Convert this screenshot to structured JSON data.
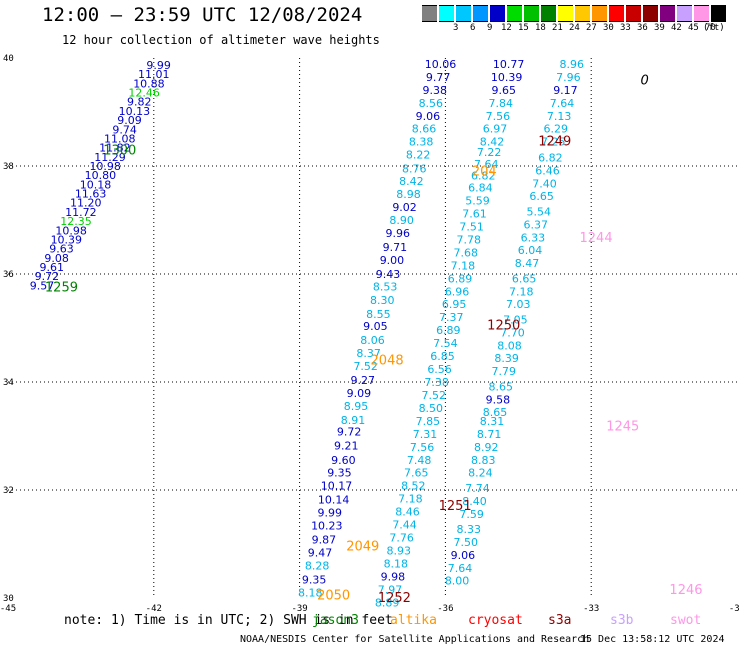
{
  "title": "12:00 – 23:59 UTC 12/08/2024",
  "subtitle": "12 hour collection of altimeter wave heights",
  "color_scale": {
    "unit": "(ft)",
    "bins": [
      {
        "label": "",
        "color": "#808080"
      },
      {
        "label": "3",
        "color": "#00ffff"
      },
      {
        "label": "6",
        "color": "#00c8ff"
      },
      {
        "label": "9",
        "color": "#0096ff"
      },
      {
        "label": "12",
        "color": "#0000c8"
      },
      {
        "label": "15",
        "color": "#00dc00"
      },
      {
        "label": "18",
        "color": "#00c000"
      },
      {
        "label": "21",
        "color": "#008200"
      },
      {
        "label": "24",
        "color": "#ffff00"
      },
      {
        "label": "27",
        "color": "#ffc800"
      },
      {
        "label": "30",
        "color": "#ff9600"
      },
      {
        "label": "33",
        "color": "#ff0000"
      },
      {
        "label": "36",
        "color": "#c80000"
      },
      {
        "label": "39",
        "color": "#8c0000"
      },
      {
        "label": "42",
        "color": "#800080"
      },
      {
        "label": "45",
        "color": "#c8a0ff"
      },
      {
        "label": "70",
        "color": "#ff96e6"
      },
      {
        "label": "",
        "color": "#000000"
      }
    ]
  },
  "chart_data": {
    "type": "scatter",
    "xlim": [
      -45,
      -30
    ],
    "ylim": [
      30,
      40
    ],
    "x_ticks": [
      "-45",
      "-42",
      "-39",
      "-36",
      "-33",
      "-30"
    ],
    "y_ticks": [
      "40",
      "38",
      "36",
      "34",
      "32",
      "30"
    ],
    "grid": true,
    "value_colors": {
      "blue": "#0000c8",
      "light": "#00b4e6",
      "green": "#00d000",
      "time": "#008200"
    },
    "tracks": [
      {
        "points": [
          {
            "x": -41.9,
            "y": 39.87,
            "v": "9.99"
          },
          {
            "x": -42.0,
            "y": 39.7,
            "v": "11.01"
          },
          {
            "x": -42.1,
            "y": 39.53,
            "v": "10.88"
          },
          {
            "x": -42.2,
            "y": 39.36,
            "v": "12.46"
          },
          {
            "x": -42.3,
            "y": 39.19,
            "v": "9.82"
          },
          {
            "x": -42.4,
            "y": 39.02,
            "v": "10.13"
          },
          {
            "x": -42.5,
            "y": 38.85,
            "v": "9.09"
          },
          {
            "x": -42.6,
            "y": 38.68,
            "v": "9.74"
          },
          {
            "x": -42.7,
            "y": 38.51,
            "v": "11.08"
          },
          {
            "x": -42.8,
            "y": 38.34,
            "v": "11.82"
          },
          {
            "x": -42.9,
            "y": 38.17,
            "v": "11.29"
          },
          {
            "x": -43.0,
            "y": 38.0,
            "v": "10.98"
          },
          {
            "x": -43.1,
            "y": 37.83,
            "v": "10.80"
          },
          {
            "x": -43.2,
            "y": 37.66,
            "v": "10.18"
          },
          {
            "x": -43.3,
            "y": 37.49,
            "v": "11.63"
          },
          {
            "x": -43.4,
            "y": 37.32,
            "v": "11.20"
          },
          {
            "x": -43.5,
            "y": 37.15,
            "v": "11.72"
          },
          {
            "x": -43.6,
            "y": 36.98,
            "v": "12.35"
          },
          {
            "x": -43.7,
            "y": 36.81,
            "v": "10.98"
          },
          {
            "x": -43.8,
            "y": 36.64,
            "v": "10.39"
          },
          {
            "x": -43.9,
            "y": 36.47,
            "v": "9.63"
          },
          {
            "x": -44.0,
            "y": 36.3,
            "v": "9.08"
          },
          {
            "x": -44.1,
            "y": 36.13,
            "v": "9.61"
          },
          {
            "x": -44.2,
            "y": 35.96,
            "v": "9.72"
          },
          {
            "x": -44.3,
            "y": 35.79,
            "v": "9.57"
          }
        ],
        "time_labels": [
          {
            "x": -42.7,
            "y": 38.29,
            "t": "1300"
          },
          {
            "x": -43.9,
            "y": 35.75,
            "t": "1259"
          }
        ]
      },
      {
        "points": [
          {
            "x": -36.1,
            "y": 39.89,
            "v": "10.06"
          },
          {
            "x": -36.15,
            "y": 39.65,
            "v": "9.77"
          },
          {
            "x": -36.22,
            "y": 39.41,
            "v": "9.38"
          },
          {
            "x": -36.3,
            "y": 39.17,
            "v": "8.56"
          },
          {
            "x": -36.36,
            "y": 38.93,
            "v": "9.06"
          },
          {
            "x": -36.44,
            "y": 38.69,
            "v": "8.66"
          },
          {
            "x": -36.5,
            "y": 38.45,
            "v": "8.38"
          },
          {
            "x": -36.56,
            "y": 38.21,
            "v": "8.22"
          },
          {
            "x": -36.64,
            "y": 37.95,
            "v": "8.76"
          },
          {
            "x": -36.7,
            "y": 37.72,
            "v": "8.42"
          },
          {
            "x": -36.76,
            "y": 37.48,
            "v": "8.98"
          },
          {
            "x": -36.84,
            "y": 37.24,
            "v": "9.02"
          },
          {
            "x": -36.9,
            "y": 37.0,
            "v": "8.90"
          },
          {
            "x": -36.98,
            "y": 36.76,
            "v": "9.96"
          },
          {
            "x": -37.04,
            "y": 36.5,
            "v": "9.71"
          },
          {
            "x": -37.1,
            "y": 36.26,
            "v": "9.00"
          },
          {
            "x": -37.18,
            "y": 36.0,
            "v": "9.43"
          },
          {
            "x": -37.24,
            "y": 35.77,
            "v": "8.53"
          },
          {
            "x": -37.3,
            "y": 35.52,
            "v": "8.30"
          },
          {
            "x": -37.38,
            "y": 35.26,
            "v": "8.55"
          },
          {
            "x": -37.44,
            "y": 35.04,
            "v": "9.05"
          },
          {
            "x": -37.5,
            "y": 34.78,
            "v": "8.06"
          },
          {
            "x": -37.58,
            "y": 34.54,
            "v": "8.37"
          },
          {
            "x": -37.64,
            "y": 34.3,
            "v": "7.52"
          },
          {
            "x": -37.7,
            "y": 34.04,
            "v": "9.27"
          },
          {
            "x": -37.78,
            "y": 33.8,
            "v": "9.09"
          },
          {
            "x": -37.84,
            "y": 33.56,
            "v": "8.95"
          },
          {
            "x": -37.9,
            "y": 33.3,
            "v": "8.91"
          },
          {
            "x": -37.98,
            "y": 33.08,
            "v": "9.72"
          },
          {
            "x": -38.04,
            "y": 32.82,
            "v": "9.21"
          },
          {
            "x": -38.1,
            "y": 32.56,
            "v": "9.60"
          },
          {
            "x": -38.18,
            "y": 32.32,
            "v": "9.35"
          },
          {
            "x": -38.24,
            "y": 32.08,
            "v": "10.17"
          },
          {
            "x": -38.3,
            "y": 31.82,
            "v": "10.14"
          },
          {
            "x": -38.38,
            "y": 31.58,
            "v": "9.99"
          },
          {
            "x": -38.44,
            "y": 31.34,
            "v": "10.23"
          },
          {
            "x": -38.5,
            "y": 31.08,
            "v": "9.87"
          },
          {
            "x": -38.58,
            "y": 30.84,
            "v": "9.47"
          },
          {
            "x": -38.64,
            "y": 30.6,
            "v": "8.28"
          },
          {
            "x": -38.7,
            "y": 30.34,
            "v": "9.35"
          },
          {
            "x": -38.78,
            "y": 30.1,
            "v": "8.18"
          }
        ],
        "time_labels": [
          {
            "x": -35.2,
            "y": 37.9,
            "t": "204"
          },
          {
            "x": -37.2,
            "y": 34.4,
            "t": "2048"
          },
          {
            "x": -37.7,
            "y": 30.95,
            "t": "2049"
          },
          {
            "x": -38.3,
            "y": 30.05,
            "t": "2050"
          }
        ]
      },
      {
        "points": [
          {
            "x": -34.7,
            "y": 39.89,
            "v": "10.77"
          },
          {
            "x": -34.74,
            "y": 39.65,
            "v": "10.39"
          },
          {
            "x": -34.8,
            "y": 39.41,
            "v": "9.65"
          },
          {
            "x": -34.86,
            "y": 39.17,
            "v": "7.84"
          },
          {
            "x": -34.92,
            "y": 38.93,
            "v": "7.56"
          },
          {
            "x": -34.98,
            "y": 38.69,
            "v": "6.97"
          },
          {
            "x": -35.04,
            "y": 38.45,
            "v": "8.42"
          },
          {
            "x": -35.1,
            "y": 38.26,
            "v": "7.22"
          },
          {
            "x": -35.16,
            "y": 38.04,
            "v": "7.64"
          },
          {
            "x": -35.22,
            "y": 37.82,
            "v": "6.82"
          },
          {
            "x": -35.28,
            "y": 37.6,
            "v": "6.84"
          },
          {
            "x": -35.34,
            "y": 37.36,
            "v": "5.59"
          },
          {
            "x": -35.4,
            "y": 37.12,
            "v": "7.61"
          },
          {
            "x": -35.46,
            "y": 36.88,
            "v": "7.51"
          },
          {
            "x": -35.52,
            "y": 36.64,
            "v": "7.78"
          },
          {
            "x": -35.58,
            "y": 36.4,
            "v": "7.68"
          },
          {
            "x": -35.64,
            "y": 36.16,
            "v": "7.18"
          },
          {
            "x": -35.7,
            "y": 35.92,
            "v": "6.89"
          },
          {
            "x": -35.76,
            "y": 35.68,
            "v": "6.96"
          },
          {
            "x": -35.82,
            "y": 35.44,
            "v": "6.95"
          },
          {
            "x": -35.88,
            "y": 35.2,
            "v": "7.37"
          },
          {
            "x": -35.94,
            "y": 34.96,
            "v": "6.89"
          },
          {
            "x": -36.0,
            "y": 34.72,
            "v": "7.54"
          },
          {
            "x": -36.06,
            "y": 34.48,
            "v": "6.85"
          },
          {
            "x": -36.12,
            "y": 34.24,
            "v": "6.56"
          },
          {
            "x": -36.18,
            "y": 34.0,
            "v": "7.38"
          },
          {
            "x": -36.24,
            "y": 33.76,
            "v": "7.52"
          },
          {
            "x": -36.3,
            "y": 33.52,
            "v": "8.50"
          },
          {
            "x": -36.36,
            "y": 33.28,
            "v": "7.85"
          },
          {
            "x": -36.42,
            "y": 33.04,
            "v": "7.31"
          },
          {
            "x": -36.48,
            "y": 32.8,
            "v": "7.56"
          },
          {
            "x": -36.54,
            "y": 32.56,
            "v": "7.48"
          },
          {
            "x": -36.6,
            "y": 32.32,
            "v": "7.65"
          },
          {
            "x": -36.66,
            "y": 32.08,
            "v": "8.52"
          },
          {
            "x": -36.72,
            "y": 31.84,
            "v": "7.18"
          },
          {
            "x": -36.78,
            "y": 31.6,
            "v": "8.46"
          },
          {
            "x": -36.84,
            "y": 31.36,
            "v": "7.44"
          },
          {
            "x": -36.9,
            "y": 31.12,
            "v": "7.76"
          },
          {
            "x": -36.96,
            "y": 30.88,
            "v": "8.93"
          },
          {
            "x": -37.02,
            "y": 30.64,
            "v": "8.18"
          },
          {
            "x": -37.08,
            "y": 30.4,
            "v": "9.98"
          },
          {
            "x": -37.14,
            "y": 30.16,
            "v": "7.97"
          },
          {
            "x": -37.2,
            "y": 29.92,
            "v": "8.89"
          }
        ],
        "time_labels": [
          {
            "x": -33.75,
            "y": 38.45,
            "t": "1249"
          },
          {
            "x": -34.8,
            "y": 35.05,
            "t": "1250"
          },
          {
            "x": -35.8,
            "y": 31.7,
            "t": "1251"
          },
          {
            "x": -37.05,
            "y": 30.0,
            "t": "1252"
          }
        ]
      },
      {
        "points": [
          {
            "x": -33.4,
            "y": 39.89,
            "v": "8.96"
          },
          {
            "x": -33.47,
            "y": 39.65,
            "v": "7.96"
          },
          {
            "x": -33.53,
            "y": 39.41,
            "v": "9.17"
          },
          {
            "x": -33.6,
            "y": 39.17,
            "v": "7.64"
          },
          {
            "x": -33.66,
            "y": 38.93,
            "v": "7.13"
          },
          {
            "x": -33.73,
            "y": 38.69,
            "v": "6.29"
          },
          {
            "x": -33.78,
            "y": 38.45,
            "v": "7.25"
          },
          {
            "x": -33.84,
            "y": 38.16,
            "v": "6.82"
          },
          {
            "x": -33.9,
            "y": 37.92,
            "v": "6.46"
          },
          {
            "x": -33.96,
            "y": 37.68,
            "v": "7.40"
          },
          {
            "x": -34.02,
            "y": 37.44,
            "v": "6.65"
          },
          {
            "x": -34.08,
            "y": 37.16,
            "v": "5.54"
          },
          {
            "x": -34.14,
            "y": 36.92,
            "v": "6.37"
          },
          {
            "x": -34.2,
            "y": 36.68,
            "v": "6.33"
          },
          {
            "x": -34.26,
            "y": 36.44,
            "v": "6.04"
          },
          {
            "x": -34.32,
            "y": 36.2,
            "v": "8.47"
          },
          {
            "x": -34.38,
            "y": 35.92,
            "v": "6.65"
          },
          {
            "x": -34.44,
            "y": 35.68,
            "v": "7.18"
          },
          {
            "x": -34.5,
            "y": 35.44,
            "v": "7.03"
          },
          {
            "x": -34.56,
            "y": 35.16,
            "v": "7.05"
          },
          {
            "x": -34.62,
            "y": 34.92,
            "v": "7.70"
          },
          {
            "x": -34.68,
            "y": 34.68,
            "v": "8.08"
          },
          {
            "x": -34.74,
            "y": 34.44,
            "v": "8.39"
          },
          {
            "x": -34.8,
            "y": 34.2,
            "v": "7.79"
          },
          {
            "x": -34.86,
            "y": 33.92,
            "v": "8.65"
          },
          {
            "x": -34.92,
            "y": 33.68,
            "v": "9.58"
          },
          {
            "x": -34.98,
            "y": 33.44,
            "v": "8.65"
          },
          {
            "x": -35.04,
            "y": 33.28,
            "v": "8.31"
          },
          {
            "x": -35.1,
            "y": 33.04,
            "v": "8.71"
          },
          {
            "x": -35.16,
            "y": 32.8,
            "v": "8.92"
          },
          {
            "x": -35.22,
            "y": 32.56,
            "v": "8.83"
          },
          {
            "x": -35.28,
            "y": 32.32,
            "v": "8.24"
          },
          {
            "x": -35.34,
            "y": 32.04,
            "v": "7.74"
          },
          {
            "x": -35.4,
            "y": 31.8,
            "v": "8.40"
          },
          {
            "x": -35.46,
            "y": 31.56,
            "v": "7.59"
          },
          {
            "x": -35.52,
            "y": 31.28,
            "v": "8.33"
          },
          {
            "x": -35.58,
            "y": 31.04,
            "v": "7.50"
          },
          {
            "x": -35.64,
            "y": 30.8,
            "v": "9.06"
          },
          {
            "x": -35.7,
            "y": 30.56,
            "v": "7.64"
          },
          {
            "x": -35.76,
            "y": 30.32,
            "v": "8.00"
          }
        ],
        "time_labels": [
          {
            "x": -32.9,
            "y": 36.67,
            "t": "1244"
          },
          {
            "x": -32.35,
            "y": 33.18,
            "t": "1245"
          },
          {
            "x": -31.05,
            "y": 30.15,
            "t": "1246"
          }
        ]
      }
    ],
    "annotations": [
      {
        "x": -31.9,
        "y": 39.6,
        "t": "0"
      }
    ]
  },
  "note": {
    "text": "note: 1) Time is in UTC; 2) SWH is in feet",
    "legend": [
      {
        "label": "jason3",
        "color": "#008200"
      },
      {
        "label": "altika",
        "color": "#ff9600"
      },
      {
        "label": "cryosat",
        "color": "#ff0000"
      },
      {
        "label": "s3a",
        "color": "#8c0000"
      },
      {
        "label": "s3b",
        "color": "#c8a0ff"
      },
      {
        "label": "swot",
        "color": "#ff96e6"
      }
    ]
  },
  "footer": {
    "credit": "NOAA/NESDIS Center for Satellite Applications and Research",
    "timestamp": "15 Dec 13:58:12 UTC 2024"
  }
}
